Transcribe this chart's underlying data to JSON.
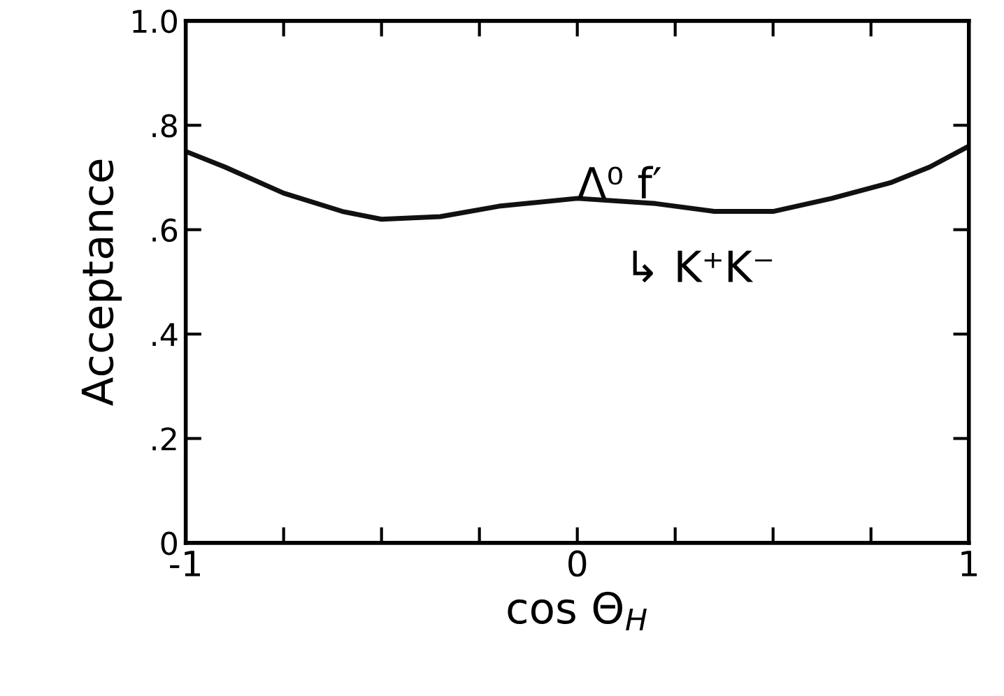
{
  "chart_data": {
    "type": "line",
    "xlabel": "cos Θ$_{H}$",
    "ylabel": "Acceptance",
    "x": [
      -1,
      -0.9,
      -0.75,
      -0.6,
      -0.5,
      -0.35,
      -0.2,
      0,
      0.2,
      0.35,
      0.5,
      0.65,
      0.8,
      0.9,
      1
    ],
    "series": [
      {
        "color": "#111111",
        "values": [
          0.75,
          0.72,
          0.67,
          0.635,
          0.62,
          0.625,
          0.645,
          0.66,
          0.65,
          0.635,
          0.635,
          0.66,
          0.69,
          0.72,
          0.76
        ]
      }
    ],
    "xlim": [
      -1,
      1
    ],
    "ylim": [
      0,
      1.0
    ],
    "xticks": [
      -1,
      {
        "value": -0.75,
        "label": null
      },
      {
        "value": -0.5,
        "label": null
      },
      {
        "value": -0.25,
        "label": null
      },
      0,
      {
        "value": 0.25,
        "label": null
      },
      {
        "value": 0.5,
        "label": null
      },
      {
        "value": 0.75,
        "label": null
      },
      1
    ],
    "yticks": [
      0,
      {
        "value": 0.2,
        "label": ".2"
      },
      {
        "value": 0.4,
        "label": ".4"
      },
      {
        "value": 0.6,
        "label": ".6"
      },
      {
        "value": 0.8,
        "label": ".8"
      },
      {
        "value": 1.0,
        "label": "1.0"
      }
    ],
    "annotations": [
      "Λ⁰ f′",
      "↳ K⁺K⁻"
    ],
    "grid": false,
    "legend": false,
    "marker": "none",
    "line_style": "solid"
  }
}
